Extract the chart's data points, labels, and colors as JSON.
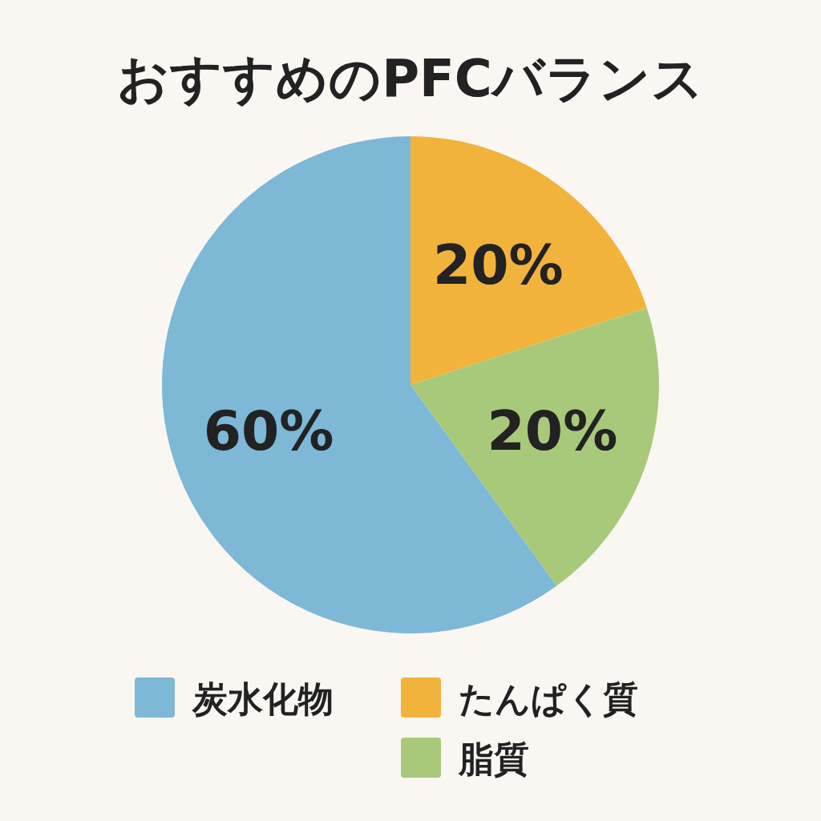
{
  "chart_data": {
    "type": "pie",
    "title": "おすすめのPFCバランス",
    "categories": [
      "炭水化物",
      "たんぱく質",
      "脂質"
    ],
    "values": [
      60,
      20,
      20
    ],
    "colors": [
      "#7db8d6",
      "#f2b33d",
      "#a9c97a"
    ],
    "value_labels": [
      "60%",
      "20%",
      "20%"
    ],
    "legend": "bottom"
  }
}
